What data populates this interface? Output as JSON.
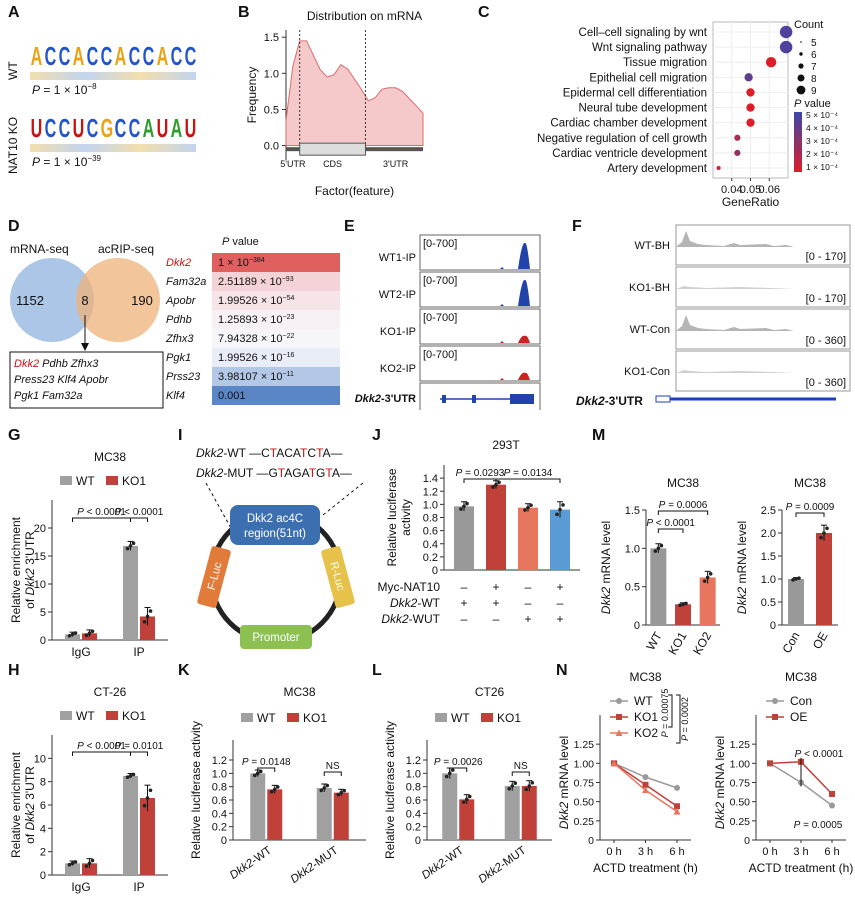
{
  "panel_labels": [
    "A",
    "B",
    "C",
    "D",
    "E",
    "F",
    "G",
    "H",
    "I",
    "J",
    "K",
    "L",
    "M",
    "N"
  ],
  "A": {
    "rows": [
      {
        "label": "WT",
        "motif": "ACCACCACCACC",
        "p": "P = 1 × 10",
        "p_exp": "−8",
        "colors": [
          "#e8a317",
          "#2255cc",
          "#2255cc",
          "#e8a317",
          "#2255cc",
          "#2255cc",
          "#e8a317",
          "#2255cc",
          "#2255cc",
          "#e8a317",
          "#2255cc",
          "#2255cc"
        ]
      },
      {
        "label": "NAT10 KO",
        "motif": "UCCUCGCCAUAU",
        "p": "P = 1 × 10",
        "p_exp": "−39",
        "colors": [
          "#cc1111",
          "#2255cc",
          "#2255cc",
          "#cc1111",
          "#2255cc",
          "#e8a317",
          "#2255cc",
          "#2255cc",
          "#2e9e2e",
          "#cc1111",
          "#2e9e2e",
          "#cc1111"
        ]
      }
    ]
  },
  "B": {
    "chart_data": {
      "type": "area",
      "title": "Distribution on mRNA",
      "xlabel": "Factor(feature)",
      "ylabel": "Frequency",
      "ylim": [
        -0.2,
        1.6
      ],
      "yticks": [
        "0.0",
        "0.5",
        "1.0",
        "1.5"
      ],
      "ytick_values": [
        0,
        0.5,
        1,
        1.5
      ],
      "x": [
        0,
        0.05,
        0.1,
        0.15,
        0.2,
        0.25,
        0.3,
        0.35,
        0.4,
        0.45,
        0.5,
        0.55,
        0.6,
        0.65,
        0.7,
        0.75,
        0.8,
        0.85,
        0.9,
        0.95,
        1
      ],
      "y": [
        0.35,
        1.1,
        1.45,
        1.45,
        1.25,
        1.05,
        0.95,
        0.98,
        1.12,
        1.06,
        0.92,
        0.78,
        0.62,
        0.66,
        0.78,
        0.8,
        0.8,
        0.75,
        0.65,
        0.55,
        0.45
      ],
      "gene_parts": [
        "5'UTR",
        "CDS",
        "3'UTR"
      ],
      "fill": "#f5c9c9",
      "stroke": "#d96c6c"
    }
  },
  "C": {
    "chart_data": {
      "type": "scatter",
      "xlabel": "GeneRatio",
      "xlim": [
        0.03,
        0.07
      ],
      "xticks": [
        "0.04",
        "0.05",
        "0.06"
      ],
      "xtick_values": [
        0.04,
        0.05,
        0.06
      ],
      "terms": [
        "Cell–cell signaling by wnt",
        "Wnt signaling pathway",
        "Tissue migration",
        "Epithelial cell migration",
        "Epidermal cell differentiation",
        "Neural tube development",
        "Cardiac chamber development",
        "Negative regulation of cell growth",
        "Cardiac ventricle development",
        "Artery development"
      ],
      "gene_ratio": [
        0.069,
        0.069,
        0.061,
        0.049,
        0.05,
        0.05,
        0.05,
        0.043,
        0.043,
        0.033
      ],
      "count": [
        9,
        9,
        8,
        7,
        7,
        7,
        7,
        6,
        6,
        5
      ],
      "pvalue": [
        0.00045,
        0.00045,
        5e-05,
        0.0004,
        5e-05,
        5e-05,
        5e-05,
        0.0002,
        0.00025,
        0.0001
      ],
      "legend_count_title": "Count",
      "legend_counts": [
        "5",
        "6",
        "7",
        "8",
        "9"
      ],
      "legend_p_title": "P value",
      "legend_p_labels": [
        "5 × 10⁻⁴",
        "4 × 10⁻⁴",
        "3 × 10⁻⁴",
        "2 × 10⁻⁴",
        "1 × 10⁻⁴"
      ]
    }
  },
  "D": {
    "venn": {
      "left_label": "mRNA-seq",
      "right_label": "acRIP-seq",
      "left_only": "1152",
      "overlap": "8",
      "right_only": "190"
    },
    "genes_box": {
      "line1_red": "Dkk2",
      "line1_rest": " Pdhb Zfhx3",
      "line2": "Press23 Klf4 Apobr",
      "line3": "Pgk1 Fam32a"
    },
    "heatmap_title": "P value",
    "heatmap": [
      {
        "gene": "Dkk2",
        "value": "1 × 10",
        "exp": "−384",
        "color": "#e06060",
        "red": true
      },
      {
        "gene": "Fam32a",
        "value": "2.51189 × 10",
        "exp": "−93",
        "color": "#f3d3d8",
        "red": false
      },
      {
        "gene": "Apobr",
        "value": "1.99526 × 10",
        "exp": "−54",
        "color": "#f6e4e8",
        "red": false
      },
      {
        "gene": "Pdhb",
        "value": "1.25893 × 10",
        "exp": "−23",
        "color": "#f7f1f5",
        "red": false
      },
      {
        "gene": "Zfhx3",
        "value": "7.94328 × 10",
        "exp": "−22",
        "color": "#f6f6fa",
        "red": false
      },
      {
        "gene": "Pgk1",
        "value": "1.99526 × 10",
        "exp": "−16",
        "color": "#e8edf7",
        "red": false
      },
      {
        "gene": "Prss23",
        "value": "3.98107 × 10",
        "exp": "−11",
        "color": "#b3c8e6",
        "red": false
      },
      {
        "gene": "Klf4",
        "value": "0.001",
        "exp": "",
        "color": "#5b86c6",
        "red": false
      }
    ]
  },
  "E": {
    "tracks": [
      {
        "label": "WT1-IP",
        "range": "[0-700]",
        "color": "#2244aa"
      },
      {
        "label": "WT2-IP",
        "range": "[0-700]",
        "color": "#2244aa"
      },
      {
        "label": "KO1-IP",
        "range": "[0-700]",
        "color": "#cc2222"
      },
      {
        "label": "KO2-IP",
        "range": "[0-700]",
        "color": "#cc2222"
      }
    ],
    "gene_label": "Dkk2",
    "gene_suffix": "-3'UTR"
  },
  "F": {
    "tracks": [
      {
        "label": "WT-BH",
        "range": "[0 - 170]",
        "peaks": true
      },
      {
        "label": "KO1-BH",
        "range": "[0 - 170]",
        "peaks": false
      },
      {
        "label": "WT-Con",
        "range": "[0 - 360]",
        "peaks": true
      },
      {
        "label": "KO1-Con",
        "range": "[0 - 360]",
        "peaks": false
      }
    ],
    "gene_label": "Dkk2",
    "gene_suffix": "-3'UTR"
  },
  "G": {
    "chart_data": {
      "type": "bar",
      "title": "MC38",
      "ylabel_pre": "Relative enrichment",
      "ylabel_gene": "Dkk2",
      "ylabel_post": " 3'UTR",
      "ylabel_of": "of ",
      "categories": [
        "IgG",
        "IP"
      ],
      "series": [
        {
          "name": "WT",
          "values": [
            1.0,
            16.8
          ],
          "err": [
            0.4,
            0.8
          ]
        },
        {
          "name": "KO1",
          "values": [
            1.2,
            4.2
          ],
          "err": [
            0.6,
            1.6
          ]
        }
      ],
      "ylim": [
        0,
        25
      ],
      "yticks": [
        "0",
        "5",
        "10",
        "15",
        "20"
      ],
      "ytick_values": [
        0,
        5,
        10,
        15,
        20
      ],
      "annotations": [
        "P < 0.0001",
        "P < 0.0001"
      ]
    }
  },
  "H": {
    "chart_data": {
      "type": "bar",
      "title": "CT-26",
      "ylabel_pre": "Relative enrichment",
      "ylabel_gene": "Dkk2",
      "ylabel_post": " 3'UTR",
      "ylabel_of": "of ",
      "categories": [
        "IgG",
        "IP"
      ],
      "series": [
        {
          "name": "WT",
          "values": [
            1.0,
            8.5
          ],
          "err": [
            0.2,
            0.2
          ]
        },
        {
          "name": "KO1",
          "values": [
            1.0,
            6.6
          ],
          "err": [
            0.4,
            1.1
          ]
        }
      ],
      "ylim": [
        0,
        12
      ],
      "yticks": [
        "0",
        "2",
        "4",
        "6",
        "8",
        "10"
      ],
      "ytick_values": [
        0,
        2,
        4,
        6,
        8,
        10
      ],
      "annotations": [
        "P < 0.0001",
        "P = 0.0101"
      ]
    }
  },
  "I": {
    "wt_gene": "Dkk2",
    "wt_suffix": "-WT",
    "wt_seq": [
      {
        "t": "—C",
        "r": false
      },
      {
        "t": "T",
        "r": true
      },
      {
        "t": "ACA",
        "r": false
      },
      {
        "t": "T",
        "r": true
      },
      {
        "t": "C",
        "r": false
      },
      {
        "t": "T",
        "r": true
      },
      {
        "t": "A—",
        "r": false
      }
    ],
    "mut_gene": "Dkk2",
    "mut_suffix": "-MUT",
    "mut_seq": [
      {
        "t": "—G",
        "r": false
      },
      {
        "t": "T",
        "r": true
      },
      {
        "t": "AGA",
        "r": false
      },
      {
        "t": "T",
        "r": true
      },
      {
        "t": "G",
        "r": false
      },
      {
        "t": "T",
        "r": true
      },
      {
        "t": "A—",
        "r": false
      }
    ],
    "region_line1": "Dkk2 ac4C",
    "region_line2": "region(51nt)",
    "fluc": "F-Luc",
    "rluc": "R-Luc",
    "promoter": "Promoter"
  },
  "J": {
    "chart_data": {
      "type": "bar",
      "title": "293T",
      "ylabel": "Relative luciferase activity",
      "ylabel_l1": "Relative luciferase",
      "ylabel_l2": "activity",
      "values": [
        0.97,
        1.3,
        0.95,
        0.92
      ],
      "err": [
        0.07,
        0.06,
        0.06,
        0.12
      ],
      "colors": [
        "#999999",
        "#c0403a",
        "#e8765e",
        "#5b9bd5"
      ],
      "ylim": [
        0,
        1.6
      ],
      "yticks": [
        "0",
        "0.2",
        "0.4",
        "0.6",
        "0.8",
        "1.0",
        "1.2",
        "1.4"
      ],
      "ytick_values": [
        0,
        0.2,
        0.4,
        0.6,
        0.8,
        1.0,
        1.2,
        1.4
      ],
      "annotations": [
        "P = 0.0293",
        "P = 0.0134"
      ],
      "rows": [
        {
          "label": "Myc-NAT10",
          "gene": "",
          "signs": [
            "–",
            "+",
            "–",
            "+"
          ]
        },
        {
          "label": "",
          "gene": "Dkk2",
          "suffix": "-WT",
          "signs": [
            "+",
            "+",
            "–",
            "–"
          ]
        },
        {
          "label": "",
          "gene": "Dkk2",
          "suffix": "-WUT",
          "signs": [
            "–",
            "–",
            "+",
            "+"
          ]
        }
      ]
    }
  },
  "K": {
    "chart_data": {
      "type": "bar",
      "title": "MC38",
      "ylabel": "Relative luciferase activity",
      "categories": [
        "Dkk2-WT",
        "Dkk2-MUT"
      ],
      "category_genes": [
        "Dkk2",
        "Dkk2"
      ],
      "category_suffix": [
        "-WT",
        "-MUT"
      ],
      "series": [
        {
          "name": "WT",
          "values": [
            1.0,
            0.78
          ],
          "err": [
            0.05,
            0.06
          ]
        },
        {
          "name": "KO1",
          "values": [
            0.76,
            0.71
          ],
          "err": [
            0.06,
            0.05
          ]
        }
      ],
      "ylim": [
        0,
        1.5
      ],
      "yticks": [
        "0",
        "0.2",
        "0.4",
        "0.6",
        "0.8",
        "1.0",
        "1.2"
      ],
      "ytick_values": [
        0,
        0.2,
        0.4,
        0.6,
        0.8,
        1.0,
        1.2
      ],
      "annotations": [
        "P = 0.0148",
        "NS"
      ]
    }
  },
  "L": {
    "chart_data": {
      "type": "bar",
      "title": "CT26",
      "ylabel": "Relative luciferase activity",
      "categories": [
        "Dkk2-WT",
        "Dkk2-MUT"
      ],
      "category_genes": [
        "Dkk2",
        "Dkk2"
      ],
      "category_suffix": [
        "-WT",
        "-MUT"
      ],
      "series": [
        {
          "name": "WT",
          "values": [
            1.0,
            0.81
          ],
          "err": [
            0.08,
            0.07
          ]
        },
        {
          "name": "KO1",
          "values": [
            0.61,
            0.81
          ],
          "err": [
            0.07,
            0.08
          ]
        }
      ],
      "ylim": [
        0,
        1.5
      ],
      "yticks": [
        "0",
        "0.2",
        "0.4",
        "0.6",
        "0.8",
        "1.0",
        "1.2"
      ],
      "ytick_values": [
        0,
        0.2,
        0.4,
        0.6,
        0.8,
        1.0,
        1.2
      ],
      "annotations": [
        "P = 0.0026",
        "NS"
      ]
    }
  },
  "M": {
    "charts": [
      {
        "title": "MC38",
        "ylabel_gene": "Dkk2",
        "ylabel_post": " mRNA level",
        "categories": [
          "WT",
          "KO1",
          "KO2"
        ],
        "values": [
          1.0,
          0.27,
          0.62
        ],
        "err": [
          0.06,
          0.02,
          0.08
        ],
        "colors": [
          "#999999",
          "#c0403a",
          "#e8765e"
        ],
        "ylim": [
          0,
          1.5
        ],
        "yticks": [
          "0",
          "0.5",
          "1.0",
          "1.5"
        ],
        "ytick_values": [
          0,
          0.5,
          1.0,
          1.5
        ],
        "annotations": [
          "P = 0.0006",
          "P < 0.0001"
        ]
      },
      {
        "title": "MC38",
        "ylabel_gene": "Dkk2",
        "ylabel_post": " mRNA level",
        "categories": [
          "Con",
          "OE"
        ],
        "values": [
          1.0,
          2.0
        ],
        "err": [
          0.03,
          0.17
        ],
        "colors": [
          "#999999",
          "#c0403a"
        ],
        "ylim": [
          0,
          2.5
        ],
        "yticks": [
          "0",
          "0.5",
          "1.0",
          "1.5",
          "2.0",
          "2.5"
        ],
        "ytick_values": [
          0,
          0.5,
          1.0,
          1.5,
          2.0,
          2.5
        ],
        "annotations": [
          "P = 0.0009"
        ]
      }
    ]
  },
  "N": {
    "charts": [
      {
        "title": "MC38",
        "ylabel_gene": "Dkk2",
        "ylabel_post": " mRNA level",
        "xlabel": "ACTD treatment (h)",
        "x": [
          "0 h",
          "3 h",
          "6 h"
        ],
        "series": [
          {
            "name": "WT",
            "color": "#9a9a9a",
            "marker": "circle",
            "values": [
              1.0,
              0.82,
              0.68
            ]
          },
          {
            "name": "KO1",
            "color": "#c0403a",
            "marker": "square",
            "values": [
              1.0,
              0.72,
              0.44
            ]
          },
          {
            "name": "KO2",
            "color": "#e8765e",
            "marker": "triangle",
            "values": [
              1.0,
              0.65,
              0.37
            ]
          }
        ],
        "ylim": [
          0,
          1.5
        ],
        "yticks": [
          "0",
          "0.25",
          "0.50",
          "0.75",
          "1.00",
          "1.25"
        ],
        "ytick_values": [
          0,
          0.25,
          0.5,
          0.75,
          1.0,
          1.25
        ],
        "annotations": [
          "P = 0.00075",
          "P = 0.0002"
        ]
      },
      {
        "title": "MC38",
        "ylabel_gene": "Dkk2",
        "ylabel_post": " mRNA level",
        "xlabel": "ACTD treatment (h)",
        "x": [
          "0 h",
          "3 h",
          "6 h"
        ],
        "series": [
          {
            "name": "Con",
            "color": "#9a9a9a",
            "marker": "circle",
            "values": [
              1.0,
              0.75,
              0.45
            ]
          },
          {
            "name": "OE",
            "color": "#c0403a",
            "marker": "square",
            "values": [
              1.0,
              1.02,
              0.6
            ]
          }
        ],
        "ylim": [
          0,
          1.5
        ],
        "yticks": [
          "0",
          "0.25",
          "0.50",
          "0.75",
          "1.00",
          "1.25"
        ],
        "ytick_values": [
          0,
          0.25,
          0.5,
          0.75,
          1.0,
          1.25
        ],
        "annotations": [
          "P < 0.0001",
          "P = 0.0005"
        ]
      }
    ]
  }
}
